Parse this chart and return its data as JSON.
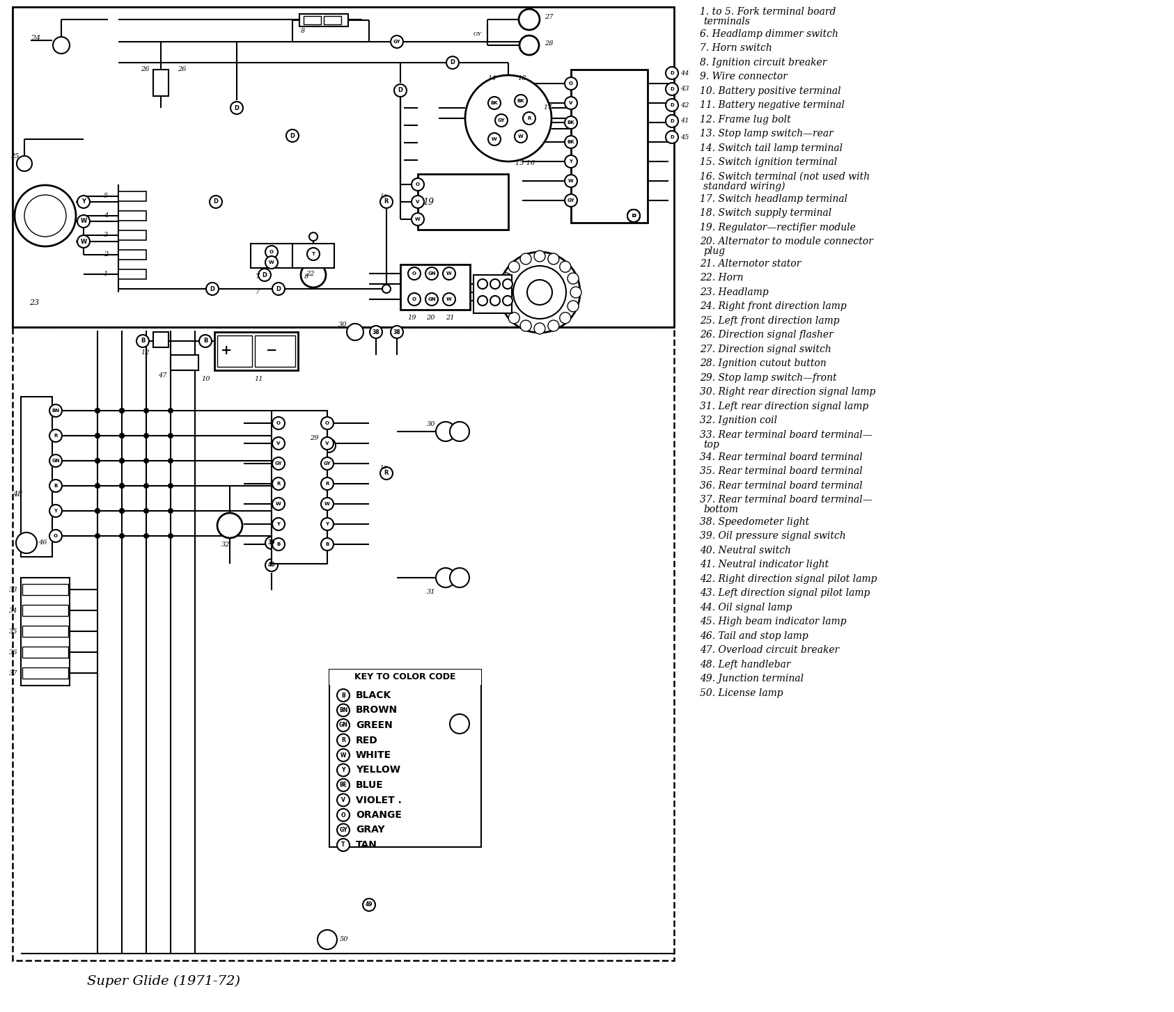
{
  "title": "Super Glide (1971-72)",
  "background_color": "#ffffff",
  "text_color": "#000000",
  "legend_items": [
    {
      "code": "B",
      "color_name": "BLACK"
    },
    {
      "code": "BN",
      "color_name": "BROWN"
    },
    {
      "code": "GN",
      "color_name": "GREEN"
    },
    {
      "code": "R",
      "color_name": "RED"
    },
    {
      "code": "W",
      "color_name": "WHITE"
    },
    {
      "code": "Y",
      "color_name": "YELLOW"
    },
    {
      "code": "BE",
      "color_name": "BLUE"
    },
    {
      "code": "V",
      "color_name": "VIOLET ."
    },
    {
      "code": "O",
      "color_name": "ORANGE"
    },
    {
      "code": "GY",
      "color_name": "GRAY"
    },
    {
      "code": "T",
      "color_name": "TAN"
    }
  ],
  "numbered_items": [
    [
      "1. to 5. Fork terminal board",
      "        terminals"
    ],
    [
      "6. Headlamp dimmer switch"
    ],
    [
      "7. Horn switch"
    ],
    [
      "8. Ignition circuit breaker"
    ],
    [
      "9. Wire connector"
    ],
    [
      "10. Battery positive terminal"
    ],
    [
      "11. Battery negative terminal"
    ],
    [
      "12. Frame lug bolt"
    ],
    [
      "13. Stop lamp switch—rear"
    ],
    [
      "14. Switch tail lamp terminal"
    ],
    [
      "15. Switch ignition terminal"
    ],
    [
      "16. Switch terminal (not used with",
      "        standard wiring)"
    ],
    [
      "17. Switch headlamp terminal"
    ],
    [
      "18. Switch supply terminal"
    ],
    [
      "19. Regulator—rectifier module"
    ],
    [
      "20. Alternator to module connector",
      "        plug"
    ],
    [
      "21. Alternotor stator"
    ],
    [
      "22. Horn"
    ],
    [
      "23. Headlamp"
    ],
    [
      "24. Right front direction lamp"
    ],
    [
      "25. Left front direction lamp"
    ],
    [
      "26. Direction signal flasher"
    ],
    [
      "27. Direction signal switch"
    ],
    [
      "28. Ignition cutout button"
    ],
    [
      "29. Stop lamp switch—front"
    ],
    [
      "30. Right rear direction signal lamp"
    ],
    [
      "31. Left rear direction signal lamp"
    ],
    [
      "32. Ignition coil"
    ],
    [
      "33. Rear terminal board terminal—",
      "        top"
    ],
    [
      "34. Rear terminal board terminal"
    ],
    [
      "35. Rear terminal board terminal"
    ],
    [
      "36. Rear terminal board terminal"
    ],
    [
      "37. Rear terminal board terminal—",
      "        bottom"
    ],
    [
      "38. Speedometer light"
    ],
    [
      "39. Oil pressure signal switch"
    ],
    [
      "40. Neutral switch"
    ],
    [
      "41. Neutral indicator light"
    ],
    [
      "42. Right direction signal pilot lamp"
    ],
    [
      "43. Left direction signal pilot lamp"
    ],
    [
      "44. Oil signal lamp"
    ],
    [
      "45. High beam indicator lamp"
    ],
    [
      "46. Tail and stop lamp"
    ],
    [
      "47. Overload circuit breaker"
    ],
    [
      "48. Left handlebar"
    ],
    [
      "49. Junction terminal"
    ],
    [
      "50. License lamp"
    ]
  ],
  "figsize": [
    16.86,
    14.54
  ],
  "dpi": 100
}
